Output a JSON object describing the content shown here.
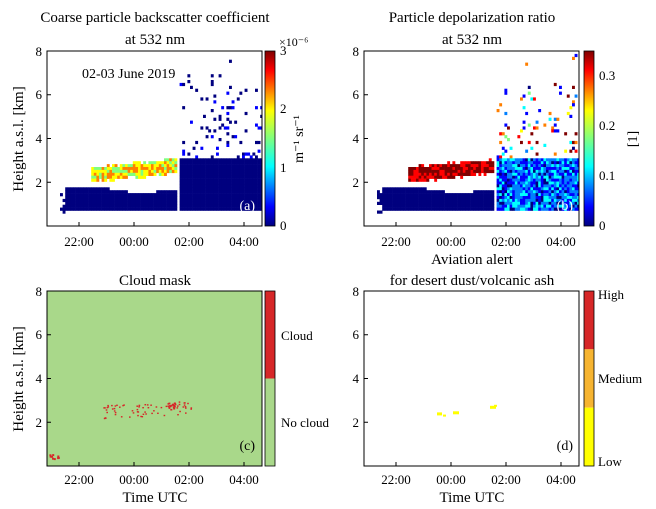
{
  "figure": {
    "ylabel": "Height a.s.l. [km]",
    "xlabel": "Time UTC"
  },
  "colormaps": {
    "jet": [
      "#00007f",
      "#0000ff",
      "#007fff",
      "#00ffff",
      "#7fff7f",
      "#ffff00",
      "#ff7f00",
      "#ff0000",
      "#7f0000"
    ],
    "cloud": [
      "#a9d88a",
      "#d62728"
    ],
    "alert": [
      "#ffff00",
      "#f6b431",
      "#d62728"
    ]
  },
  "chart_data": [
    {
      "id": "a",
      "type": "heatmap",
      "title": [
        "Coarse particle backscatter coefficient",
        "at 532 nm"
      ],
      "annotation": "02-03 June 2019",
      "panel_letter": "(a)",
      "ylim": [
        0,
        8
      ],
      "yticks": [
        "2",
        "4",
        "6",
        "8"
      ],
      "xticks": [
        "22:00",
        "00:00",
        "02:00",
        "04:00"
      ],
      "colorbar": {
        "range": [
          0,
          3
        ],
        "ticks": [
          "0",
          "1",
          "2",
          "3"
        ],
        "unit": "m⁻¹ sr⁻¹",
        "scale": "×10⁻⁶"
      }
    },
    {
      "id": "b",
      "type": "heatmap",
      "title": [
        "Particle depolarization ratio",
        "at 532 nm"
      ],
      "panel_letter": "(b)",
      "ylim": [
        0,
        8
      ],
      "yticks": [
        "2",
        "4",
        "6",
        "8"
      ],
      "xticks": [
        "22:00",
        "00:00",
        "02:00",
        "04:00"
      ],
      "colorbar": {
        "range": [
          0,
          0.35
        ],
        "ticks": [
          "0",
          "0.1",
          "0.2",
          "0.3"
        ],
        "unit": "[1]"
      }
    },
    {
      "id": "c",
      "type": "heatmap",
      "title": [
        "Cloud mask"
      ],
      "panel_letter": "(c)",
      "ylim": [
        0,
        8
      ],
      "yticks": [
        "2",
        "4",
        "6",
        "8"
      ],
      "xticks": [
        "22:00",
        "00:00",
        "02:00",
        "04:00"
      ],
      "colorbar": {
        "categories": [
          "Cloud",
          "No cloud"
        ]
      }
    },
    {
      "id": "d",
      "type": "heatmap",
      "title": [
        "Aviation alert",
        "for desert dust/volcanic ash"
      ],
      "panel_letter": "(d)",
      "ylim": [
        0,
        8
      ],
      "yticks": [
        "2",
        "4",
        "6",
        "8"
      ],
      "xticks": [
        "22:00",
        "00:00",
        "02:00",
        "04:00"
      ],
      "colorbar": {
        "categories": [
          "High",
          "Medium",
          "Low"
        ]
      }
    }
  ]
}
